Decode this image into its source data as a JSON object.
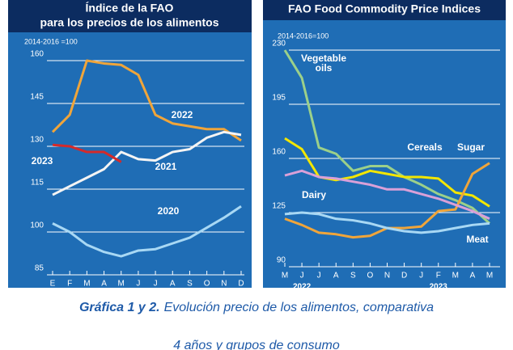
{
  "chart_data": [
    {
      "type": "line",
      "title_lines": [
        "Índice de la FAO",
        "para los precios de los alimentos"
      ],
      "unit_label": "2014-2016 =100",
      "categories": [
        "E",
        "F",
        "M",
        "A",
        "M",
        "J",
        "J",
        "A",
        "S",
        "O",
        "N",
        "D"
      ],
      "ylim": [
        85,
        165
      ],
      "yticks": [
        85,
        100,
        115,
        130,
        145,
        160
      ],
      "grid": true,
      "series": [
        {
          "name": "2022",
          "color": "#f0a53a",
          "values": [
            135,
            141,
            160,
            159,
            158.5,
            155,
            141,
            138,
            137,
            136,
            136,
            132
          ]
        },
        {
          "name": "2021",
          "color": "#f4f4f4",
          "values": [
            113,
            116,
            119,
            122,
            128,
            125.5,
            125,
            128,
            129,
            133,
            135,
            134
          ]
        },
        {
          "name": "2023",
          "color": "#d42a2a",
          "values": [
            130.5,
            130,
            128,
            128,
            124.5,
            null,
            null,
            null,
            null,
            null,
            null,
            null
          ]
        },
        {
          "name": "2020",
          "color": "#a8d8f4",
          "values": [
            103,
            100,
            95.5,
            93,
            91.5,
            93.5,
            94,
            96,
            98,
            101.5,
            105,
            109
          ]
        }
      ]
    },
    {
      "type": "line",
      "title_lines": [
        "FAO Food Commodity Price Indices"
      ],
      "unit_label": "2014-2016=100",
      "categories": [
        "M",
        "J",
        "J",
        "A",
        "S",
        "O",
        "N",
        "D",
        "J",
        "F",
        "M",
        "A",
        "M"
      ],
      "year_labels": [
        "2022",
        "2023"
      ],
      "ylim": [
        90,
        235
      ],
      "yticks": [
        90,
        125,
        160,
        195,
        230
      ],
      "grid": true,
      "series": [
        {
          "name": "Vegetable oils",
          "color": "#9bd08a",
          "values": [
            230,
            212,
            167,
            163,
            152,
            155,
            155,
            148,
            143,
            137,
            133,
            128,
            118
          ]
        },
        {
          "name": "Cereals",
          "color": "#f2e600",
          "values": [
            173,
            166,
            148,
            146,
            148,
            152,
            150,
            148,
            148,
            147,
            138,
            136,
            129
          ]
        },
        {
          "name": "Sugar",
          "color": "#f0a53a",
          "values": [
            121,
            117,
            112,
            111,
            109,
            110,
            115,
            115,
            116,
            126,
            127,
            150,
            157
          ]
        },
        {
          "name": "Dairy",
          "color": "#d9a0d8",
          "values": [
            149,
            152,
            148,
            147,
            145,
            143,
            140,
            140,
            137,
            134,
            130,
            126,
            121
          ]
        },
        {
          "name": "Meat",
          "color": "#a8d8f4",
          "values": [
            124,
            125,
            124,
            121,
            120,
            118,
            115,
            113,
            112,
            113,
            115,
            117,
            118
          ]
        }
      ]
    }
  ],
  "caption": {
    "bold": "Gráfica 1 y 2.",
    "lines": [
      "Evolución precio de los alimentos, comparativa",
      "4 años y grupos de consumo"
    ]
  }
}
